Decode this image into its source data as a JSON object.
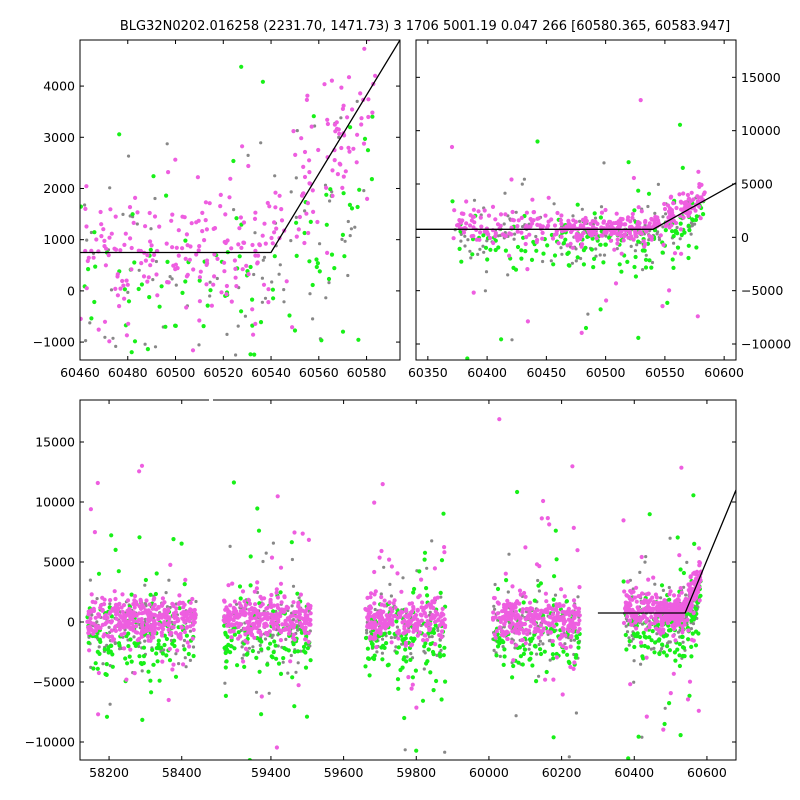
{
  "title": "BLG32N0202.016258 (2231.70, 1471.73)  3 1706 5001.19 0.047 266 [60580.365, 60583.947]",
  "colors": {
    "band_a": "#ee5ee0",
    "band_b": "#18f018",
    "band_c": "#888888",
    "model": "#000000"
  },
  "chart_data": [
    {
      "id": "top-left",
      "type": "scatter",
      "xlim": [
        60460,
        60594
      ],
      "ylim": [
        -1350,
        4900
      ],
      "xticks": [
        60460,
        60480,
        60500,
        60520,
        60540,
        60560,
        60580
      ],
      "yticks": [
        -1000,
        0,
        1000,
        2000,
        3000,
        4000
      ],
      "model_line": {
        "x": [
          60460,
          60540,
          60594
        ],
        "y": [
          750,
          750,
          4900
        ]
      }
    },
    {
      "id": "top-right",
      "type": "scatter",
      "xlim": [
        60340,
        60610
      ],
      "ylim": [
        -11500,
        18500
      ],
      "xticks": [
        60350,
        60400,
        60450,
        60500,
        60550,
        60600
      ],
      "yticks": [
        -10000,
        -5000,
        0,
        5000,
        10000,
        15000
      ],
      "model_line": {
        "x": [
          60340,
          60540,
          60610
        ],
        "y": [
          750,
          750,
          5100
        ]
      }
    },
    {
      "id": "bottom",
      "type": "scatter",
      "xlim": [
        58120,
        60680
      ],
      "ylim": [
        -11500,
        18500
      ],
      "xticks": [
        58200,
        58400,
        59400,
        59600,
        59800,
        60000,
        60200,
        60400,
        60600
      ],
      "yticks": [
        -10000,
        -5000,
        0,
        5000,
        10000,
        15000
      ],
      "axis_break": [
        58480,
        59240
      ],
      "model_line": {
        "x": [
          60300,
          60540,
          60680
        ],
        "y": [
          750,
          750,
          11000
        ]
      }
    }
  ]
}
